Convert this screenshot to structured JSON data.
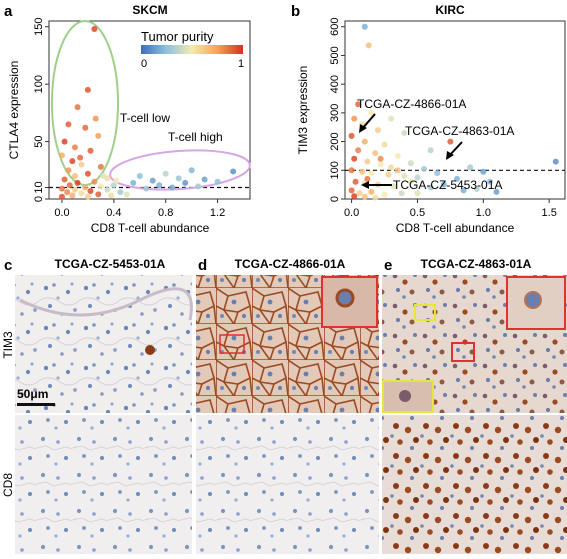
{
  "panels": {
    "a": "a",
    "b": "b",
    "c": "c",
    "d": "d",
    "e": "e"
  },
  "colors": {
    "low": "#3b6fb6",
    "mid": "#f3ebb0",
    "high": "#d7301f",
    "green_ellipse": "#9fd08a",
    "purple_ellipse": "#d7a6e6",
    "he_bg": "#f1ede8",
    "dab": "#9b4a22"
  },
  "chart_data": [
    {
      "type": "scatter",
      "title": "SKCM",
      "xlabel": "CD8 T-cell abundance",
      "ylabel": "CTLA4 expression",
      "xlim": [
        -0.1,
        1.45
      ],
      "ylim": [
        0,
        155
      ],
      "x_ticks": [
        "0.0",
        "0.4",
        "0.8",
        "1.2"
      ],
      "x_tick_values": [
        0.0,
        0.4,
        0.8,
        1.2
      ],
      "y_ticks": [
        "0",
        "10",
        "50",
        "100",
        "150"
      ],
      "y_tick_values": [
        0,
        10,
        50,
        100,
        150
      ],
      "hline": 10,
      "legend": {
        "title": "Tumor purity",
        "min_label": "0",
        "max_label": "1",
        "placement": "top-right"
      },
      "annotations": [
        "T-cell low",
        "T-cell high"
      ],
      "points": [
        {
          "x": 0.25,
          "y": 148,
          "p": 0.95
        },
        {
          "x": 0.2,
          "y": 95,
          "p": 0.92
        },
        {
          "x": 0.12,
          "y": 80,
          "p": 0.85
        },
        {
          "x": 0.05,
          "y": 65,
          "p": 0.9
        },
        {
          "x": 0.18,
          "y": 62,
          "p": 0.88
        },
        {
          "x": 0.28,
          "y": 55,
          "p": 0.75
        },
        {
          "x": 0.02,
          "y": 50,
          "p": 0.96
        },
        {
          "x": 0.1,
          "y": 45,
          "p": 0.82
        },
        {
          "x": 0.22,
          "y": 42,
          "p": 0.9
        },
        {
          "x": 0.0,
          "y": 38,
          "p": 0.7
        },
        {
          "x": 0.08,
          "y": 33,
          "p": 0.95
        },
        {
          "x": 0.15,
          "y": 30,
          "p": 0.6
        },
        {
          "x": 0.3,
          "y": 28,
          "p": 0.85
        },
        {
          "x": 0.05,
          "y": 25,
          "p": 0.78
        },
        {
          "x": 0.2,
          "y": 22,
          "p": 0.92
        },
        {
          "x": 0.1,
          "y": 20,
          "p": 0.65
        },
        {
          "x": 0.35,
          "y": 18,
          "p": 0.55
        },
        {
          "x": 0.02,
          "y": 17,
          "p": 0.9
        },
        {
          "x": 0.25,
          "y": 15,
          "p": 0.8
        },
        {
          "x": 0.12,
          "y": 14,
          "p": 0.97
        },
        {
          "x": 0.06,
          "y": 12,
          "p": 0.88
        },
        {
          "x": 0.3,
          "y": 11,
          "p": 0.5
        },
        {
          "x": 0.18,
          "y": 10,
          "p": 0.72
        },
        {
          "x": 0.0,
          "y": 9,
          "p": 0.85
        },
        {
          "x": 0.1,
          "y": 8,
          "p": 0.6
        },
        {
          "x": 0.22,
          "y": 7,
          "p": 0.94
        },
        {
          "x": 0.04,
          "y": 6,
          "p": 0.8
        },
        {
          "x": 0.15,
          "y": 5,
          "p": 0.55
        },
        {
          "x": 0.28,
          "y": 4,
          "p": 0.9
        },
        {
          "x": 0.08,
          "y": 3,
          "p": 0.7
        },
        {
          "x": 0.0,
          "y": 2,
          "p": 0.93
        },
        {
          "x": 0.2,
          "y": 2,
          "p": 0.6
        },
        {
          "x": 0.35,
          "y": 8,
          "p": 0.4
        },
        {
          "x": 0.4,
          "y": 12,
          "p": 0.35
        },
        {
          "x": 0.45,
          "y": 6,
          "p": 0.3
        },
        {
          "x": 0.55,
          "y": 14,
          "p": 0.2
        },
        {
          "x": 0.6,
          "y": 20,
          "p": 0.25
        },
        {
          "x": 0.65,
          "y": 9,
          "p": 0.3
        },
        {
          "x": 0.7,
          "y": 16,
          "p": 0.15
        },
        {
          "x": 0.75,
          "y": 12,
          "p": 0.2
        },
        {
          "x": 0.8,
          "y": 22,
          "p": 0.35
        },
        {
          "x": 0.85,
          "y": 10,
          "p": 0.18
        },
        {
          "x": 0.9,
          "y": 18,
          "p": 0.28
        },
        {
          "x": 0.95,
          "y": 14,
          "p": 0.12
        },
        {
          "x": 1.0,
          "y": 25,
          "p": 0.22
        },
        {
          "x": 1.05,
          "y": 11,
          "p": 0.3
        },
        {
          "x": 1.1,
          "y": 17,
          "p": 0.15
        },
        {
          "x": 1.2,
          "y": 15,
          "p": 0.25
        },
        {
          "x": 1.32,
          "y": 24,
          "p": 0.1
        },
        {
          "x": 0.5,
          "y": 4,
          "p": 0.45
        },
        {
          "x": 0.42,
          "y": 16,
          "p": 0.5
        },
        {
          "x": 0.32,
          "y": 20,
          "p": 0.45
        },
        {
          "x": 0.38,
          "y": 3,
          "p": 0.55
        },
        {
          "x": 0.14,
          "y": 36,
          "p": 0.87
        },
        {
          "x": 0.26,
          "y": 70,
          "p": 0.78
        }
      ]
    },
    {
      "type": "scatter",
      "title": "KIRC",
      "xlabel": "CD8 T-cell abundance",
      "ylabel": "TIM3 expression",
      "xlim": [
        -0.05,
        1.62
      ],
      "ylim": [
        0,
        620
      ],
      "x_ticks": [
        "0.0",
        "0.5",
        "1.0",
        "1.5"
      ],
      "x_tick_values": [
        0.0,
        0.5,
        1.0,
        1.5
      ],
      "y_ticks": [
        "0",
        "100",
        "200",
        "300",
        "400",
        "500",
        "600"
      ],
      "y_tick_values": [
        0,
        100,
        200,
        300,
        400,
        500,
        600
      ],
      "hline": 100,
      "annotations": [
        "TCGA-CZ-4866-01A",
        "TCGA-CZ-4863-01A",
        "TCGA-CZ-5453-01A"
      ],
      "points": [
        {
          "x": 0.1,
          "y": 600,
          "p": 0.2
        },
        {
          "x": 0.13,
          "y": 535,
          "p": 0.65
        },
        {
          "x": 0.05,
          "y": 330,
          "p": 0.88
        },
        {
          "x": 0.02,
          "y": 280,
          "p": 0.78
        },
        {
          "x": 0.08,
          "y": 260,
          "p": 0.55
        },
        {
          "x": 0.15,
          "y": 300,
          "p": 0.5
        },
        {
          "x": 0.2,
          "y": 240,
          "p": 0.6
        },
        {
          "x": 0.3,
          "y": 280,
          "p": 0.45
        },
        {
          "x": 0.0,
          "y": 220,
          "p": 0.92
        },
        {
          "x": 0.1,
          "y": 200,
          "p": 0.7
        },
        {
          "x": 0.25,
          "y": 190,
          "p": 0.55
        },
        {
          "x": 0.4,
          "y": 230,
          "p": 0.4
        },
        {
          "x": 0.05,
          "y": 170,
          "p": 0.82
        },
        {
          "x": 0.18,
          "y": 160,
          "p": 0.65
        },
        {
          "x": 0.35,
          "y": 150,
          "p": 0.5
        },
        {
          "x": 0.6,
          "y": 170,
          "p": 0.35
        },
        {
          "x": 0.75,
          "y": 200,
          "p": 0.9
        },
        {
          "x": 0.02,
          "y": 140,
          "p": 0.95
        },
        {
          "x": 0.12,
          "y": 130,
          "p": 0.6
        },
        {
          "x": 0.22,
          "y": 120,
          "p": 0.5
        },
        {
          "x": 0.3,
          "y": 110,
          "p": 0.55
        },
        {
          "x": 0.45,
          "y": 125,
          "p": 0.4
        },
        {
          "x": 0.55,
          "y": 105,
          "p": 0.3
        },
        {
          "x": 0.0,
          "y": 100,
          "p": 0.85
        },
        {
          "x": 0.08,
          "y": 95,
          "p": 0.65
        },
        {
          "x": 0.15,
          "y": 90,
          "p": 0.5
        },
        {
          "x": 0.28,
          "y": 85,
          "p": 0.6
        },
        {
          "x": 0.4,
          "y": 80,
          "p": 0.45
        },
        {
          "x": 0.5,
          "y": 75,
          "p": 0.35
        },
        {
          "x": 0.65,
          "y": 90,
          "p": 0.25
        },
        {
          "x": 0.8,
          "y": 70,
          "p": 0.2
        },
        {
          "x": 0.9,
          "y": 110,
          "p": 0.3
        },
        {
          "x": 1.0,
          "y": 95,
          "p": 0.15
        },
        {
          "x": 1.05,
          "y": 60,
          "p": 0.25
        },
        {
          "x": 1.55,
          "y": 130,
          "p": 0.1
        },
        {
          "x": 0.03,
          "y": 60,
          "p": 0.9
        },
        {
          "x": 0.1,
          "y": 55,
          "p": 0.55
        },
        {
          "x": 0.2,
          "y": 50,
          "p": 0.6
        },
        {
          "x": 0.32,
          "y": 45,
          "p": 0.45
        },
        {
          "x": 0.6,
          "y": 40,
          "p": 0.3
        },
        {
          "x": 0.7,
          "y": 50,
          "p": 0.2
        },
        {
          "x": 0.0,
          "y": 30,
          "p": 0.88
        },
        {
          "x": 0.06,
          "y": 20,
          "p": 0.6
        },
        {
          "x": 0.15,
          "y": 25,
          "p": 0.7
        },
        {
          "x": 0.25,
          "y": 15,
          "p": 0.5
        },
        {
          "x": 0.38,
          "y": 20,
          "p": 0.4
        },
        {
          "x": 0.02,
          "y": 10,
          "p": 0.96
        },
        {
          "x": 0.1,
          "y": 8,
          "p": 0.65
        },
        {
          "x": 0.18,
          "y": 5,
          "p": 0.55
        },
        {
          "x": 0.85,
          "y": 30,
          "p": 0.2
        },
        {
          "x": 0.95,
          "y": 35,
          "p": 0.35
        },
        {
          "x": 1.1,
          "y": 25,
          "p": 0.15
        },
        {
          "x": 0.5,
          "y": 20,
          "p": 0.45
        },
        {
          "x": 0.45,
          "y": 60,
          "p": 0.5
        },
        {
          "x": 0.12,
          "y": 70,
          "p": 0.85
        },
        {
          "x": 0.35,
          "y": 100,
          "p": 0.65
        },
        {
          "x": 0.22,
          "y": 140,
          "p": 0.8
        }
      ]
    }
  ],
  "micrographs": {
    "c": {
      "title": "TCGA-CZ-5453-01A"
    },
    "d": {
      "title": "TCGA-CZ-4866-01A"
    },
    "e": {
      "title": "TCGA-CZ-4863-01A"
    },
    "row_labels": [
      "TIM3",
      "CD8"
    ],
    "scale_bar": "50μm"
  }
}
